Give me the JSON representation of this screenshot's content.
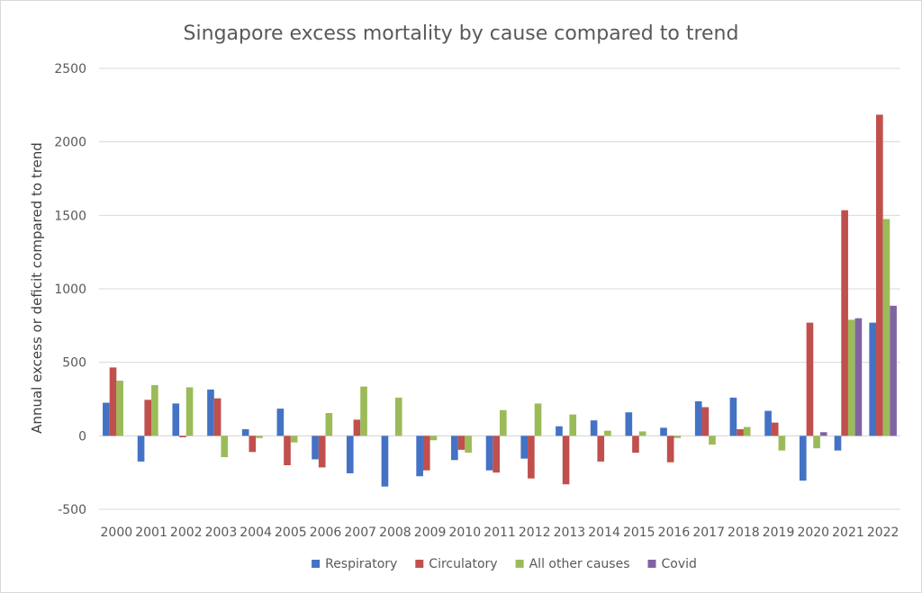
{
  "chart_data": {
    "type": "bar",
    "title": "Singapore excess mortality by cause compared to trend",
    "xlabel": "",
    "ylabel": "Annual excess or deficit compared to trend",
    "ylim": [
      -500,
      2500
    ],
    "yticks": [
      -500,
      0,
      500,
      1000,
      1500,
      2000,
      2500
    ],
    "grid": true,
    "legend_position": "bottom",
    "categories": [
      "2000",
      "2001",
      "2002",
      "2003",
      "2004",
      "2005",
      "2006",
      "2007",
      "2008",
      "2009",
      "2010",
      "2011",
      "2012",
      "2013",
      "2014",
      "2015",
      "2016",
      "2017",
      "2018",
      "2019",
      "2020",
      "2021",
      "2022"
    ],
    "series": [
      {
        "name": "Respiratory",
        "color": "#4472c4",
        "values": [
          225,
          -175,
          220,
          315,
          45,
          185,
          -160,
          -255,
          -345,
          -275,
          -165,
          -235,
          -155,
          65,
          105,
          160,
          55,
          235,
          260,
          170,
          -305,
          -100,
          770
        ]
      },
      {
        "name": "Circulatory",
        "color": "#c0504d",
        "values": [
          465,
          245,
          -10,
          255,
          -110,
          -200,
          -215,
          110,
          0,
          -235,
          -95,
          -250,
          -290,
          -330,
          -175,
          -115,
          -180,
          195,
          45,
          90,
          770,
          1535,
          2185
        ]
      },
      {
        "name": "All other causes",
        "color": "#9bbb59",
        "values": [
          375,
          345,
          330,
          -145,
          -15,
          -45,
          155,
          335,
          260,
          -30,
          -115,
          175,
          220,
          145,
          35,
          30,
          -15,
          -60,
          60,
          -100,
          -85,
          790,
          1475
        ]
      },
      {
        "name": "Covid",
        "color": "#8064a2",
        "values": [
          0,
          0,
          0,
          0,
          0,
          0,
          0,
          0,
          0,
          0,
          0,
          0,
          0,
          0,
          0,
          0,
          0,
          0,
          0,
          0,
          25,
          800,
          885
        ]
      }
    ]
  }
}
